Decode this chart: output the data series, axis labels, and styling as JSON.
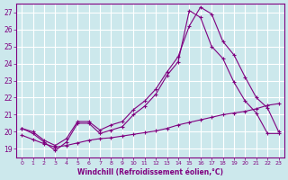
{
  "xlabel": "Windchill (Refroidissement éolien,°C)",
  "bg_color": "#cce8ec",
  "grid_color": "#ffffff",
  "line_color": "#800080",
  "fig_color": "#cce8ec",
  "xticks": [
    0,
    1,
    2,
    3,
    4,
    5,
    6,
    7,
    8,
    9,
    10,
    11,
    12,
    13,
    14,
    15,
    16,
    17,
    18,
    19,
    20,
    21,
    22,
    23
  ],
  "yticks": [
    19,
    20,
    21,
    22,
    23,
    24,
    25,
    26,
    27
  ],
  "xlim": [
    -0.5,
    23.5
  ],
  "ylim": [
    18.5,
    27.5
  ],
  "line1_x": [
    0,
    1,
    2,
    3,
    4,
    5,
    6,
    7,
    8,
    9,
    10,
    11,
    12,
    13,
    14,
    15,
    16,
    17,
    18,
    19,
    20,
    21,
    22,
    23
  ],
  "line1_y": [
    20.2,
    19.9,
    19.4,
    18.9,
    19.4,
    20.5,
    20.5,
    19.9,
    20.1,
    20.3,
    21.0,
    21.5,
    22.2,
    23.3,
    24.1,
    27.1,
    26.7,
    25.0,
    24.3,
    22.9,
    21.8,
    21.1,
    19.9,
    19.9
  ],
  "line2_x": [
    0,
    1,
    2,
    3,
    4,
    5,
    6,
    7,
    8,
    9,
    10,
    11,
    12,
    13,
    14,
    15,
    16,
    17,
    18,
    19,
    20,
    21,
    22,
    23
  ],
  "line2_y": [
    20.2,
    20.0,
    19.5,
    19.2,
    19.6,
    20.6,
    20.6,
    20.1,
    20.4,
    20.6,
    21.3,
    21.8,
    22.5,
    23.5,
    24.4,
    26.2,
    27.3,
    26.9,
    25.3,
    24.5,
    23.2,
    22.0,
    21.4,
    20.0
  ],
  "line3_x": [
    0,
    1,
    2,
    3,
    4,
    5,
    6,
    7,
    8,
    9,
    10,
    11,
    12,
    13,
    14,
    15,
    16,
    17,
    18,
    19,
    20,
    21,
    22,
    23
  ],
  "line3_y": [
    19.8,
    19.55,
    19.3,
    19.1,
    19.2,
    19.35,
    19.5,
    19.6,
    19.65,
    19.75,
    19.85,
    19.95,
    20.05,
    20.2,
    20.4,
    20.55,
    20.7,
    20.85,
    21.0,
    21.1,
    21.2,
    21.35,
    21.55,
    21.65
  ]
}
